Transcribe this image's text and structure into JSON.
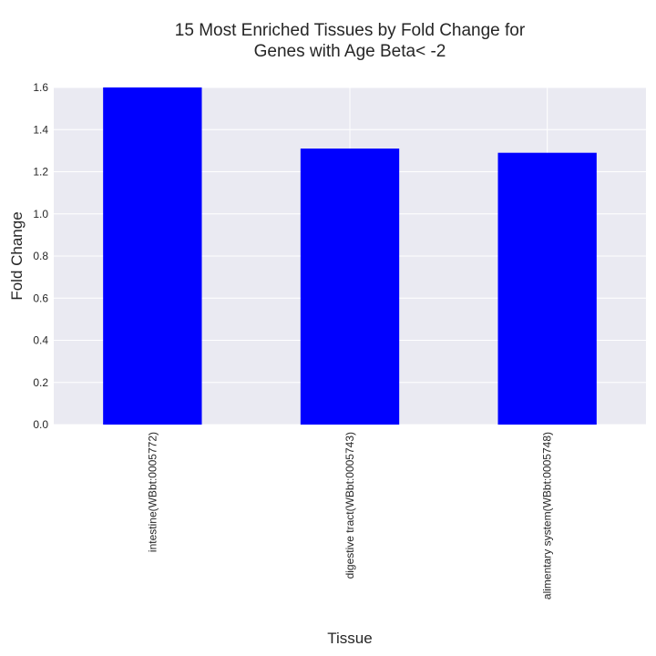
{
  "chart_data": {
    "type": "bar",
    "title_lines": [
      "15 Most Enriched Tissues by Fold Change for",
      "Genes with Age Beta< -2"
    ],
    "xlabel": "Tissue",
    "ylabel": "Fold Change",
    "categories": [
      "intestine(WBbt:0005772)",
      "digestive tract(WBbt:0005743)",
      "alimentary system(WBbt:0005748)"
    ],
    "values": [
      1.6,
      1.31,
      1.29
    ],
    "ylim": [
      0,
      1.6
    ],
    "yticks": [
      "0.0",
      "0.2",
      "0.4",
      "0.6",
      "0.8",
      "1.0",
      "1.2",
      "1.4",
      "1.6"
    ],
    "grid": true,
    "colors": {
      "bar": "#0000ff",
      "plot_bg": "#eaeaf2",
      "grid": "#ffffff",
      "text": "#262626"
    }
  }
}
